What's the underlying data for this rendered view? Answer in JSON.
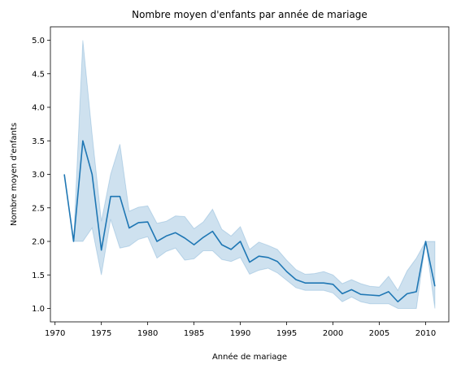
{
  "chart_data": {
    "type": "line",
    "title": "Nombre moyen d'enfants par année de mariage",
    "xlabel": "Année de mariage",
    "ylabel": "Nombre moyen d'enfants",
    "xlim": [
      1969.5,
      2012.5
    ],
    "ylim": [
      0.8,
      5.2
    ],
    "x_ticks": [
      1970,
      1975,
      1980,
      1985,
      1990,
      1995,
      2000,
      2005,
      2010
    ],
    "y_ticks": [
      1.0,
      1.5,
      2.0,
      2.5,
      3.0,
      3.5,
      4.0,
      4.5,
      5.0
    ],
    "grid": false,
    "colors": {
      "line": "#1f77b4",
      "band": "#1f77b4"
    },
    "series": [
      {
        "x": [
          1971,
          1972,
          1973,
          1974,
          1975,
          1976,
          1977,
          1978,
          1979,
          1980,
          1981,
          1982,
          1983,
          1984,
          1985,
          1986,
          1987,
          1988,
          1989,
          1990,
          1991,
          1992,
          1993,
          1994,
          1995,
          1996,
          1997,
          1998,
          1999,
          2000,
          2001,
          2002,
          2003,
          2004,
          2005,
          2006,
          2007,
          2008,
          2009,
          2010,
          2011
        ],
        "values": [
          3.0,
          2.0,
          3.5,
          3.0,
          1.87,
          2.67,
          2.67,
          2.2,
          2.28,
          2.29,
          2.0,
          2.08,
          2.13,
          2.05,
          1.95,
          2.06,
          2.15,
          1.95,
          1.88,
          2.0,
          1.69,
          1.78,
          1.76,
          1.7,
          1.55,
          1.43,
          1.38,
          1.38,
          1.38,
          1.36,
          1.22,
          1.28,
          1.21,
          1.2,
          1.19,
          1.25,
          1.1,
          1.22,
          1.25,
          2.0,
          1.33
        ],
        "ci_lower": [
          3.0,
          2.0,
          2.0,
          2.2,
          1.5,
          2.33,
          1.9,
          1.93,
          2.03,
          2.07,
          1.75,
          1.85,
          1.9,
          1.72,
          1.74,
          1.86,
          1.86,
          1.73,
          1.7,
          1.76,
          1.51,
          1.57,
          1.6,
          1.53,
          1.42,
          1.31,
          1.27,
          1.27,
          1.27,
          1.23,
          1.1,
          1.17,
          1.1,
          1.07,
          1.07,
          1.07,
          1.0,
          1.0,
          1.0,
          2.0,
          1.0
        ],
        "ci_upper": [
          3.0,
          2.0,
          5.0,
          3.6,
          2.3,
          3.0,
          3.45,
          2.45,
          2.51,
          2.53,
          2.27,
          2.3,
          2.38,
          2.37,
          2.19,
          2.29,
          2.48,
          2.18,
          2.08,
          2.22,
          1.88,
          1.99,
          1.94,
          1.88,
          1.72,
          1.58,
          1.51,
          1.52,
          1.55,
          1.5,
          1.37,
          1.43,
          1.37,
          1.33,
          1.32,
          1.48,
          1.27,
          1.56,
          1.75,
          2.0,
          2.0
        ]
      }
    ]
  }
}
